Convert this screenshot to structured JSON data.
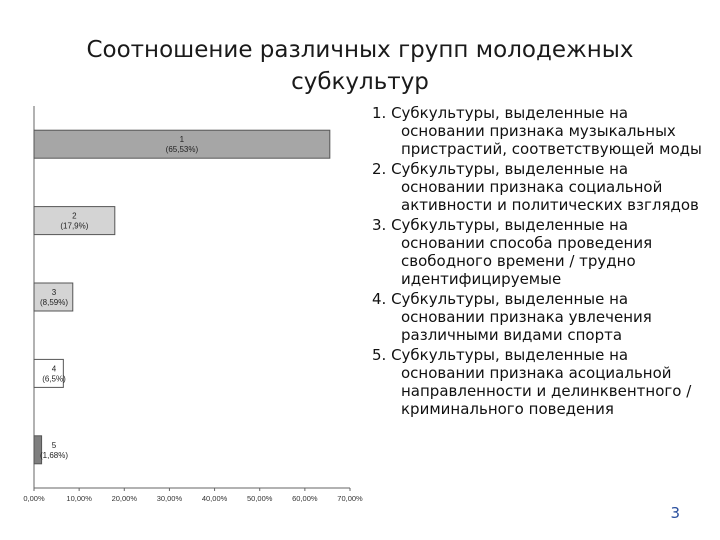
{
  "slide": {
    "title_line1": "Соотношение различных групп молодежных",
    "title_line2": "субкультур",
    "page_number": "3"
  },
  "legend": {
    "items": [
      "1. Субкультуры, выделенные на основании признака музыкальных пристрастий, соответствующей моды",
      "2. Субкультуры, выделенные на основании признака социальной активности и политических взглядов",
      "3. Субкультуры, выделенные на основании способа проведения свободного времени / трудно идентифицируемые",
      "4. Субкультуры, выделенные на основании признака увлечения различными видами спорта",
      "5. Субкультуры, выделенные на основании признака асоциальной направленности и делинквентного / криминального поведения"
    ]
  },
  "chart_data": {
    "type": "bar",
    "orientation": "horizontal",
    "categories": [
      "1",
      "2",
      "3",
      "4",
      "5"
    ],
    "values": [
      65.53,
      17.9,
      8.59,
      6.5,
      1.68
    ],
    "value_labels": [
      "(65,53%)",
      "(17,9%)",
      "(8,59%)",
      "(6,5%)",
      "(1,68%)"
    ],
    "x_ticks": [
      "0,00%",
      "10,00%",
      "20,00%",
      "30,00%",
      "40,00%",
      "50,00%",
      "60,00%",
      "70,00%"
    ],
    "xlim": [
      0,
      70
    ],
    "bar_colors": [
      "#a6a6a6",
      "#d4d4d4",
      "#d4d4d4",
      "#ffffff",
      "#7f7f7f"
    ],
    "grid": false,
    "legend": "none"
  }
}
